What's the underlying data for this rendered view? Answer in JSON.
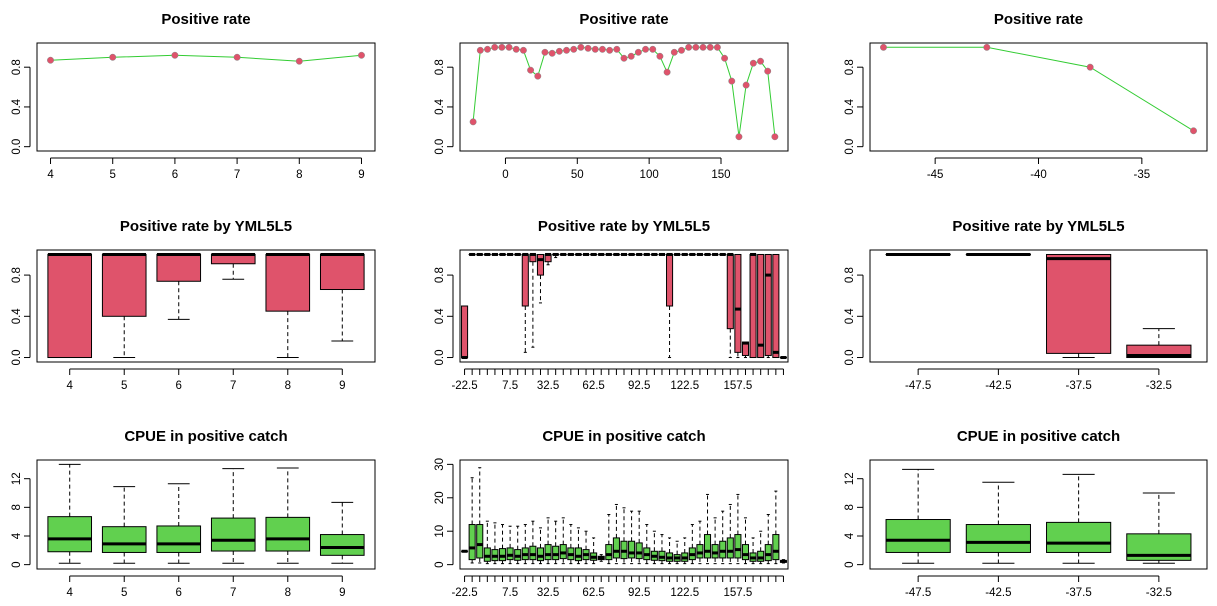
{
  "colors": {
    "line": "#33cc33",
    "point": "#df536b",
    "box_red": "#df536b",
    "box_green": "#61d04f",
    "frame": "#000000"
  },
  "chart_data": [
    {
      "type": "line",
      "title": "Positive rate",
      "xlim": [
        4,
        9
      ],
      "ylim": [
        0,
        1
      ],
      "x": [
        4,
        5,
        6,
        7,
        8,
        9
      ],
      "y": [
        0.87,
        0.9,
        0.92,
        0.9,
        0.86,
        0.92
      ],
      "xticks": [
        "4",
        "5",
        "6",
        "7",
        "8",
        "9"
      ],
      "yticks": [
        "0.0",
        "0.4",
        "0.8"
      ]
    },
    {
      "type": "line",
      "title": "Positive rate",
      "xlim": [
        -22.5,
        187.5
      ],
      "ylim": [
        0,
        1
      ],
      "x": [
        -22.5,
        -17.5,
        -12.5,
        -7.5,
        -2.5,
        2.5,
        7.5,
        12.5,
        17.5,
        22.5,
        27.5,
        32.5,
        37.5,
        42.5,
        47.5,
        52.5,
        57.5,
        62.5,
        67.5,
        72.5,
        77.5,
        82.5,
        87.5,
        92.5,
        97.5,
        102.5,
        107.5,
        112.5,
        117.5,
        122.5,
        127.5,
        132.5,
        137.5,
        142.5,
        147.5,
        152.5,
        157.5,
        162.5,
        167.5,
        172.5,
        177.5,
        182.5,
        187.5
      ],
      "y": [
        0.25,
        0.97,
        0.98,
        1.0,
        1.0,
        1.0,
        0.98,
        0.97,
        0.77,
        0.71,
        0.95,
        0.94,
        0.96,
        0.97,
        0.98,
        1.0,
        0.99,
        0.98,
        0.98,
        0.97,
        0.98,
        0.89,
        0.91,
        0.95,
        0.98,
        0.98,
        0.91,
        0.75,
        0.95,
        0.97,
        1.0,
        1.0,
        1.0,
        1.0,
        1.0,
        0.89,
        0.66,
        0.1,
        0.62,
        0.84,
        0.86,
        0.76,
        0.1
      ],
      "xticks": [
        "0",
        "50",
        "100",
        "150"
      ],
      "yticks": [
        "0.0",
        "0.4",
        "0.8"
      ]
    },
    {
      "type": "line",
      "title": "Positive rate",
      "xlim": [
        -47.5,
        -32.5
      ],
      "ylim": [
        0,
        1
      ],
      "x": [
        -47.5,
        -42.5,
        -37.5,
        -32.5
      ],
      "y": [
        1.0,
        1.0,
        0.8,
        0.16
      ],
      "xticks": [
        "-45",
        "-40",
        "-35"
      ],
      "yticks": [
        "0.0",
        "0.4",
        "0.8"
      ]
    },
    {
      "type": "box",
      "title": "Positive rate by YML5L5",
      "ylim": [
        0,
        1
      ],
      "categories": [
        "4",
        "5",
        "6",
        "7",
        "8",
        "9"
      ],
      "boxes": [
        [
          0,
          0,
          1,
          1,
          1
        ],
        [
          0,
          0.4,
          1,
          1,
          1
        ],
        [
          0.37,
          0.74,
          1,
          1,
          1
        ],
        [
          0.76,
          0.91,
          1,
          1,
          1
        ],
        [
          0,
          0.45,
          1,
          1,
          1
        ],
        [
          0.16,
          0.66,
          1,
          1,
          1
        ]
      ],
      "xticks": [
        "4",
        "5",
        "6",
        "7",
        "8",
        "9"
      ],
      "yticks": [
        "0.0",
        "0.4",
        "0.8"
      ]
    },
    {
      "type": "box",
      "title": "Positive rate by YML5L5",
      "ylim": [
        0,
        1
      ],
      "categories": [
        "-22.5",
        "-17.5",
        "-12.5",
        "-7.5",
        "-2.5",
        "2.5",
        "7.5",
        "12.5",
        "17.5",
        "22.5",
        "27.5",
        "32.5",
        "37.5",
        "42.5",
        "47.5",
        "52.5",
        "57.5",
        "62.5",
        "67.5",
        "72.5",
        "77.5",
        "82.5",
        "87.5",
        "92.5",
        "97.5",
        "102.5",
        "107.5",
        "112.5",
        "117.5",
        "122.5",
        "127.5",
        "132.5",
        "137.5",
        "142.5",
        "147.5",
        "152.5",
        "157.5",
        "162.5",
        "167.5",
        "172.5",
        "177.5",
        "182.5",
        "187.5"
      ],
      "boxes": [
        [
          0,
          0,
          0,
          0.5,
          0.5
        ],
        [
          1,
          1,
          1,
          1,
          1
        ],
        [
          1,
          1,
          1,
          1,
          1
        ],
        [
          1,
          1,
          1,
          1,
          1
        ],
        [
          1,
          1,
          1,
          1,
          1
        ],
        [
          1,
          1,
          1,
          1,
          1
        ],
        [
          1,
          1,
          1,
          1,
          1
        ],
        [
          1,
          1,
          1,
          1,
          1
        ],
        [
          0.05,
          0.5,
          1,
          1,
          1
        ],
        [
          0.1,
          0.93,
          1,
          1,
          1
        ],
        [
          0.53,
          0.8,
          0.95,
          1,
          1
        ],
        [
          0.9,
          0.93,
          1,
          1,
          1
        ],
        [
          0.97,
          1,
          1,
          1,
          1
        ],
        [
          1,
          1,
          1,
          1,
          1
        ],
        [
          1,
          1,
          1,
          1,
          1
        ],
        [
          1,
          1,
          1,
          1,
          1
        ],
        [
          1,
          1,
          1,
          1,
          1
        ],
        [
          1,
          1,
          1,
          1,
          1
        ],
        [
          1,
          1,
          1,
          1,
          1
        ],
        [
          1,
          1,
          1,
          1,
          1
        ],
        [
          1,
          1,
          1,
          1,
          1
        ],
        [
          1,
          1,
          1,
          1,
          1
        ],
        [
          1,
          1,
          1,
          1,
          1
        ],
        [
          1,
          1,
          1,
          1,
          1
        ],
        [
          1,
          1,
          1,
          1,
          1
        ],
        [
          1,
          1,
          1,
          1,
          1
        ],
        [
          1,
          1,
          1,
          1,
          1
        ],
        [
          0,
          0.5,
          1,
          1,
          1
        ],
        [
          1,
          1,
          1,
          1,
          1
        ],
        [
          1,
          1,
          1,
          1,
          1
        ],
        [
          1,
          1,
          1,
          1,
          1
        ],
        [
          1,
          1,
          1,
          1,
          1
        ],
        [
          1,
          1,
          1,
          1,
          1
        ],
        [
          1,
          1,
          1,
          1,
          1
        ],
        [
          1,
          1,
          1,
          1,
          1
        ],
        [
          0,
          0.28,
          1,
          1,
          1
        ],
        [
          0,
          0.05,
          0.47,
          1,
          1
        ],
        [
          0,
          0.02,
          0.14,
          0.15,
          0.15
        ],
        [
          0,
          0,
          1,
          1,
          1
        ],
        [
          0,
          0,
          0.12,
          1,
          1
        ],
        [
          0,
          0.02,
          0.8,
          1,
          1
        ],
        [
          0,
          0,
          0.05,
          1,
          1
        ],
        [
          0,
          0,
          0,
          0,
          0
        ]
      ],
      "xticks": [
        "-22.5",
        "7.5",
        "32.5",
        "62.5",
        "92.5",
        "122.5",
        "157.5"
      ],
      "yticks": [
        "0.0",
        "0.4",
        "0.8"
      ]
    },
    {
      "type": "box",
      "title": "Positive rate by YML5L5",
      "ylim": [
        0,
        1
      ],
      "categories": [
        "-47.5",
        "-42.5",
        "-37.5",
        "-32.5"
      ],
      "boxes": [
        [
          1,
          1,
          1,
          1,
          1
        ],
        [
          1,
          1,
          1,
          1,
          1
        ],
        [
          0,
          0.04,
          0.96,
          1,
          1
        ],
        [
          0,
          0,
          0.02,
          0.12,
          0.28
        ]
      ],
      "xticks": [
        "-47.5",
        "-42.5",
        "-37.5",
        "-32.5"
      ],
      "yticks": [
        "0.0",
        "0.4",
        "0.8"
      ]
    },
    {
      "type": "box",
      "title": "CPUE in positive catch",
      "ylim": [
        0,
        14
      ],
      "categories": [
        "4",
        "5",
        "6",
        "7",
        "8",
        "9"
      ],
      "boxes": [
        [
          0.2,
          1.8,
          3.6,
          6.7,
          14
        ],
        [
          0.2,
          1.7,
          2.9,
          5.3,
          10.9
        ],
        [
          0.2,
          1.7,
          2.9,
          5.4,
          11.3
        ],
        [
          0.2,
          1.9,
          3.4,
          6.5,
          13.4
        ],
        [
          0.2,
          1.9,
          3.6,
          6.6,
          13.5
        ],
        [
          0.2,
          1.3,
          2.4,
          4.2,
          8.7
        ]
      ],
      "xticks": [
        "4",
        "5",
        "6",
        "7",
        "8",
        "9"
      ],
      "yticks": [
        "0",
        "4",
        "8",
        "12"
      ]
    },
    {
      "type": "box",
      "title": "CPUE in positive catch",
      "ylim": [
        0,
        30
      ],
      "categories": [
        "-22.5",
        "-17.5",
        "-12.5",
        "-7.5",
        "-2.5",
        "2.5",
        "7.5",
        "12.5",
        "17.5",
        "22.5",
        "27.5",
        "32.5",
        "37.5",
        "42.5",
        "47.5",
        "52.5",
        "57.5",
        "62.5",
        "67.5",
        "72.5",
        "77.5",
        "82.5",
        "87.5",
        "92.5",
        "97.5",
        "102.5",
        "107.5",
        "112.5",
        "117.5",
        "122.5",
        "127.5",
        "132.5",
        "137.5",
        "142.5",
        "147.5",
        "152.5",
        "157.5",
        "162.5",
        "167.5",
        "172.5",
        "177.5",
        "182.5",
        "187.5"
      ],
      "boxes": [
        [
          4,
          4,
          4,
          4,
          4
        ],
        [
          0.5,
          1.5,
          5,
          12,
          26
        ],
        [
          0.5,
          2,
          6,
          12,
          29
        ],
        [
          0.3,
          1,
          2.5,
          5,
          13
        ],
        [
          0.3,
          1.2,
          2.5,
          4.5,
          12.5
        ],
        [
          0.3,
          1.2,
          2.5,
          4.8,
          12
        ],
        [
          0.3,
          1.5,
          2.8,
          5,
          11.5
        ],
        [
          0.3,
          1.3,
          2.5,
          4.5,
          11.5
        ],
        [
          0.3,
          1.5,
          3,
          5,
          12
        ],
        [
          0.3,
          1.5,
          3,
          5.5,
          13
        ],
        [
          0.3,
          1.2,
          2.5,
          5,
          11
        ],
        [
          0.3,
          1.5,
          3,
          6,
          14
        ],
        [
          0.3,
          1.5,
          3,
          5.5,
          13
        ],
        [
          0.3,
          1.8,
          3.5,
          6,
          14
        ],
        [
          0.3,
          1.5,
          3,
          5,
          12
        ],
        [
          0.3,
          1.2,
          2.5,
          5,
          11
        ],
        [
          0.3,
          1.5,
          3,
          4.5,
          10
        ],
        [
          0.3,
          1.3,
          2.2,
          3.5,
          8
        ],
        [
          1,
          1.5,
          2,
          2.5,
          3
        ],
        [
          0.3,
          1.5,
          3,
          6,
          15
        ],
        [
          0.3,
          2,
          4,
          8,
          18
        ],
        [
          0.3,
          1.8,
          4,
          7,
          17
        ],
        [
          0.3,
          2,
          3.5,
          7,
          16
        ],
        [
          0.3,
          1.8,
          3.5,
          6.5,
          16
        ],
        [
          0.3,
          1.5,
          3,
          5,
          12
        ],
        [
          0.3,
          1.3,
          2.5,
          4,
          10
        ],
        [
          0.3,
          1.2,
          2.2,
          4,
          9
        ],
        [
          0.3,
          1,
          2,
          3.5,
          8
        ],
        [
          0.3,
          1,
          2,
          3,
          7
        ],
        [
          0.3,
          1,
          2,
          3.5,
          8
        ],
        [
          0.3,
          1.5,
          3,
          5,
          12
        ],
        [
          0.3,
          2,
          3.5,
          6,
          13
        ],
        [
          0.3,
          2,
          4,
          9,
          21
        ],
        [
          0.3,
          2,
          3.5,
          6,
          14
        ],
        [
          0.3,
          2,
          4,
          7,
          16
        ],
        [
          0.3,
          2,
          4,
          8,
          18
        ],
        [
          0.3,
          2,
          4.5,
          9,
          21
        ],
        [
          0.3,
          1.5,
          3,
          6,
          14
        ],
        [
          0.3,
          1,
          2,
          3.5,
          8
        ],
        [
          0.3,
          1,
          2,
          4,
          10
        ],
        [
          0.3,
          1.2,
          3,
          6,
          15
        ],
        [
          0.3,
          1.5,
          4,
          9,
          22
        ],
        [
          0.5,
          0.7,
          1,
          1.2,
          1.5
        ]
      ],
      "xticks": [
        "-22.5",
        "7.5",
        "32.5",
        "62.5",
        "92.5",
        "122.5",
        "157.5"
      ],
      "yticks": [
        "0",
        "10",
        "20",
        "30"
      ]
    },
    {
      "type": "box",
      "title": "CPUE in positive catch",
      "ylim": [
        0,
        14
      ],
      "categories": [
        "-47.5",
        "-42.5",
        "-37.5",
        "-32.5"
      ],
      "boxes": [
        [
          0.2,
          1.7,
          3.4,
          6.3,
          13.3
        ],
        [
          0.2,
          1.7,
          3.1,
          5.6,
          11.5
        ],
        [
          0.2,
          1.7,
          3,
          5.9,
          12.6
        ],
        [
          0.2,
          0.6,
          1.3,
          4.3,
          10
        ]
      ],
      "xticks": [
        "-47.5",
        "-42.5",
        "-37.5",
        "-32.5"
      ],
      "yticks": [
        "0",
        "4",
        "8",
        "12"
      ]
    }
  ]
}
